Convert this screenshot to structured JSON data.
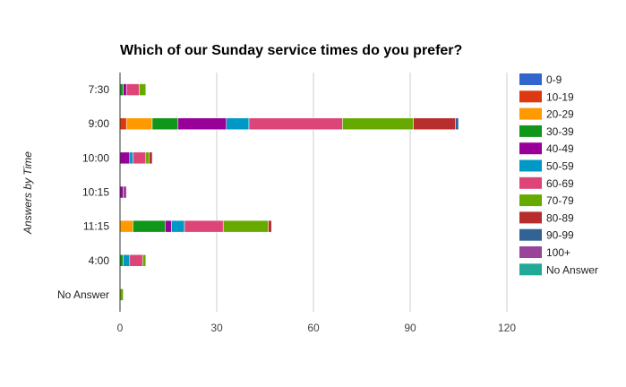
{
  "chart_data": {
    "type": "bar",
    "orientation": "horizontal",
    "stacked": true,
    "title": "Which of our Sunday service times do you prefer?",
    "ylabel": "Answers by Time",
    "xlabel": "",
    "categories": [
      "7:30",
      "9:00",
      "10:00",
      "10:15",
      "11:15",
      "4:00",
      "No Answer"
    ],
    "x_ticks": [
      0,
      30,
      60,
      90,
      120
    ],
    "xlim": [
      0,
      120
    ],
    "grid": true,
    "legend_position": "right",
    "series": [
      {
        "name": "0-9",
        "color": "#3366cc",
        "values": [
          0,
          0,
          0,
          0,
          0,
          0,
          0
        ]
      },
      {
        "name": "10-19",
        "color": "#dc3912",
        "values": [
          0,
          2,
          0,
          0,
          0,
          0,
          0
        ]
      },
      {
        "name": "20-29",
        "color": "#ff9900",
        "values": [
          0,
          8,
          0,
          0,
          4,
          0,
          0
        ]
      },
      {
        "name": "30-39",
        "color": "#109618",
        "values": [
          1,
          8,
          0,
          0,
          10,
          1,
          0
        ]
      },
      {
        "name": "40-49",
        "color": "#990099",
        "values": [
          1,
          15,
          3,
          1,
          2,
          0,
          0
        ]
      },
      {
        "name": "50-59",
        "color": "#0099c6",
        "values": [
          0,
          7,
          1,
          0,
          4,
          2,
          0
        ]
      },
      {
        "name": "60-69",
        "color": "#dd4477",
        "values": [
          4,
          29,
          4,
          0,
          12,
          4,
          0
        ]
      },
      {
        "name": "70-79",
        "color": "#66aa00",
        "values": [
          2,
          22,
          1,
          0,
          14,
          1,
          1
        ]
      },
      {
        "name": "80-89",
        "color": "#b82e2e",
        "values": [
          0,
          13,
          1,
          0,
          1,
          0,
          0
        ]
      },
      {
        "name": "90-99",
        "color": "#316395",
        "values": [
          0,
          1,
          0,
          0,
          0,
          0,
          0
        ]
      },
      {
        "name": "100+",
        "color": "#994499",
        "values": [
          0,
          0,
          0,
          1,
          0,
          0,
          0
        ]
      },
      {
        "name": "No Answer",
        "color": "#22aa99",
        "values": [
          0,
          0,
          0,
          0,
          0,
          0,
          0
        ]
      }
    ]
  }
}
